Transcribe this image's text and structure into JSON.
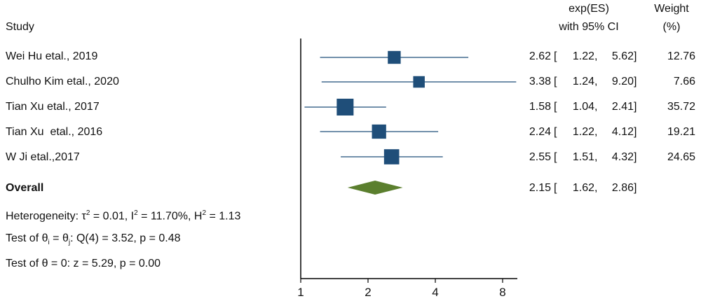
{
  "chart_data": {
    "type": "forest",
    "columns": {
      "study": "Study",
      "effect_line1": "exp(ES)",
      "effect_line2": "with 95% CI",
      "weight_line1": "Weight",
      "weight_line2": "(%)"
    },
    "studies": [
      {
        "label": "Wei Hu etal., 2019",
        "es": 2.62,
        "lo": 1.22,
        "hi": 5.62,
        "es_text": "2.62",
        "lo_text": "1.22",
        "hi_text": "5.62",
        "weight": 12.76,
        "weight_text": "12.76"
      },
      {
        "label": "Chulho Kim etal., 2020",
        "es": 3.38,
        "lo": 1.24,
        "hi": 9.2,
        "es_text": "3.38",
        "lo_text": "1.24",
        "hi_text": "9.20",
        "weight": 7.66,
        "weight_text": "7.66"
      },
      {
        "label": "Tian Xu etal., 2017",
        "es": 1.58,
        "lo": 1.04,
        "hi": 2.41,
        "es_text": "1.58",
        "lo_text": "1.04",
        "hi_text": "2.41",
        "weight": 35.72,
        "weight_text": "35.72"
      },
      {
        "label": "Tian Xu  etal., 2016",
        "es": 2.24,
        "lo": 1.22,
        "hi": 4.12,
        "es_text": "2.24",
        "lo_text": "1.22",
        "hi_text": "4.12",
        "weight": 19.21,
        "weight_text": "19.21"
      },
      {
        "label": "W Ji etal.,2017",
        "es": 2.55,
        "lo": 1.51,
        "hi": 4.32,
        "es_text": "2.55",
        "lo_text": "1.51",
        "hi_text": "4.32",
        "weight": 24.65,
        "weight_text": "24.65"
      }
    ],
    "overall": {
      "label": "Overall",
      "es": 2.15,
      "lo": 1.62,
      "hi": 2.86,
      "es_text": "2.15",
      "lo_text": "1.62",
      "hi_text": "2.86"
    },
    "heterogeneity": {
      "prefix": "Heterogeneity: ",
      "tau2": "0.01",
      "i2": "11.70%",
      "h2": "1.13"
    },
    "test_homogeneity": {
      "q_text": "Q(4) = 3.52, p = 0.48"
    },
    "test_overall": {
      "text": "Test of θ = 0: z = 5.29, p = 0.00"
    },
    "x_axis": {
      "scale": "log",
      "ticks": [
        1,
        2,
        4,
        8
      ],
      "tick_labels": [
        "1",
        "2",
        "4",
        "8"
      ],
      "range": [
        1,
        9.2
      ]
    },
    "colors": {
      "marker": "#1f4e79",
      "ci_line": "#1f4e79",
      "diamond": "#5b7f2e",
      "axis": "#000000"
    }
  }
}
